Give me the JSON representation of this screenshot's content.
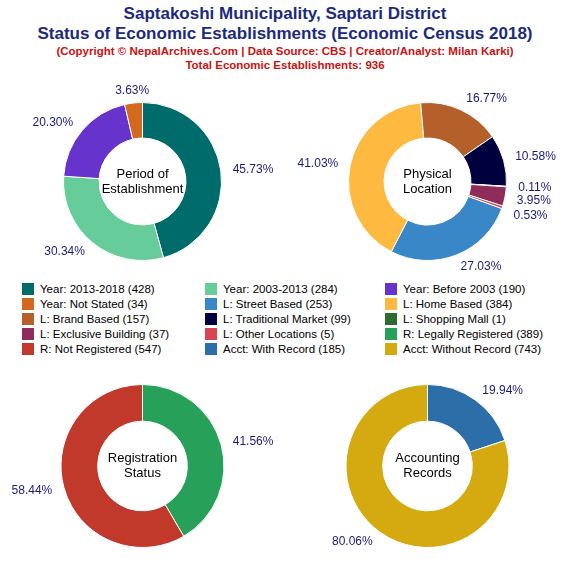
{
  "title": [
    "Saptakoshi Municipality, Saptari District",
    "Status of Economic Establishments (Economic Census 2018)"
  ],
  "subtitle": "(Copyright © NepalArchives.Com | Data Source: CBS | Creator/Analyst: Milan Karki)",
  "note": "Total Economic Establishments: 936",
  "chart_data": [
    {
      "type": "doughnut",
      "title": "Period of Establishment",
      "categories": [
        "Year: 2013-2018 (428)",
        "Year: 2003-2013 (284)",
        "Year: Before 2003 (190)",
        "Year: Not Stated (34)"
      ],
      "values": [
        45.73,
        30.34,
        20.3,
        3.63
      ],
      "value_labels": [
        "45.73%",
        "30.34%",
        "20.30%",
        "3.63%"
      ],
      "colors": [
        "#006b6b",
        "#66cc99",
        "#6633cc",
        "#d2691e"
      ],
      "data_labels": true
    },
    {
      "type": "doughnut",
      "title": "Physical Location",
      "categories": [
        "L: Street Based (253)",
        "L: Home Based (384)",
        "L: Brand Based (157)",
        "L: Traditional Market (99)",
        "L: Shopping Mall (1)",
        "L: Exclusive Building (37)",
        "L: Other Locations (5)"
      ],
      "values": [
        27.03,
        41.03,
        16.77,
        10.58,
        0.11,
        3.95,
        0.53
      ],
      "value_labels": [
        "27.03%",
        "41.03%",
        "16.77%",
        "10.58%",
        "0.11%",
        "3.95%",
        "0.53%"
      ],
      "colors": [
        "#3a87c8",
        "#fdb940",
        "#b5602a",
        "#00003f",
        "#2e6b2e",
        "#8e2d5a",
        "#d64550"
      ],
      "data_labels": true
    },
    {
      "type": "doughnut",
      "title": "Registration Status",
      "categories": [
        "R: Legally Registered (389)",
        "R: Not Registered (547)"
      ],
      "values": [
        41.56,
        58.44
      ],
      "value_labels": [
        "41.56%",
        "58.44%"
      ],
      "colors": [
        "#27a05a",
        "#c0392b"
      ],
      "data_labels": true
    },
    {
      "type": "doughnut",
      "title": "Accounting Records",
      "categories": [
        "Acct: With Record (185)",
        "Acct: Without Record (743)"
      ],
      "values": [
        19.94,
        80.06
      ],
      "value_labels": [
        "19.94%",
        "80.06%"
      ],
      "colors": [
        "#2c6fa8",
        "#d4aa10"
      ],
      "data_labels": true
    }
  ]
}
